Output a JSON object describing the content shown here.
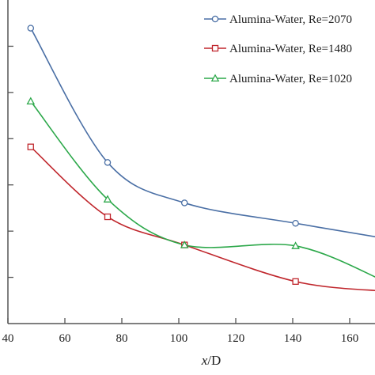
{
  "chart_data": {
    "type": "line",
    "title": "",
    "xlabel_var": "x",
    "xlabel_rest": "/D",
    "ylabel": "",
    "xlim": [
      40,
      170
    ],
    "ylim": [
      0,
      1
    ],
    "xticks": [
      40,
      60,
      80,
      100,
      120,
      140,
      160
    ],
    "yticks": [
      0.1429,
      0.2857,
      0.4286,
      0.5714,
      0.7143,
      0.8571
    ],
    "grid": false,
    "legend_position": "top-right",
    "series": [
      {
        "name": "Alumina-Water, Re=2070",
        "color": "#4a6fa5",
        "marker": "circle",
        "x": [
          48,
          75,
          102,
          141,
          172
        ],
        "y": [
          0.913,
          0.498,
          0.373,
          0.31,
          0.264
        ]
      },
      {
        "name": "Alumina-Water, Re=1480",
        "color": "#c0272d",
        "marker": "square",
        "x": [
          48,
          75,
          102,
          141,
          172
        ],
        "y": [
          0.546,
          0.33,
          0.243,
          0.13,
          0.1
        ]
      },
      {
        "name": "Alumina-Water, Re=1020",
        "color": "#2ca84a",
        "marker": "triangle",
        "x": [
          48,
          75,
          102,
          141,
          172
        ],
        "y": [
          0.687,
          0.384,
          0.243,
          0.24,
          0.132
        ]
      }
    ]
  }
}
